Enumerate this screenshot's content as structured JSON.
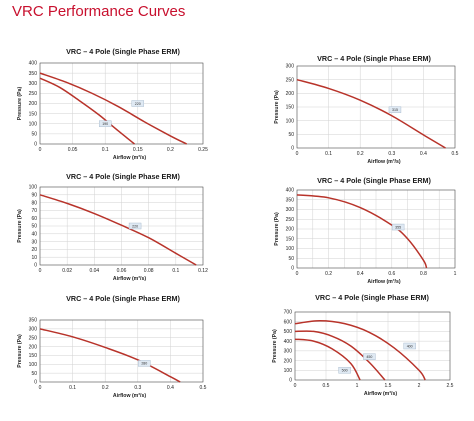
{
  "page": {
    "title": "VRC Performance Curves"
  },
  "chart_data": [
    {
      "type": "line",
      "title": "VRC – 4 Pole (Single Phase ERM)",
      "xlabel": "Airflow (m³/s)",
      "ylabel": "Pressure (Pa)",
      "xlim": [
        0,
        0.25
      ],
      "ylim": [
        0,
        400
      ],
      "xticks": [
        0,
        0.05,
        0.1,
        0.15,
        0.2,
        0.25
      ],
      "xtick_labels": [
        "0",
        "0.05",
        "0.1",
        "0.15",
        "0.2",
        "0.25"
      ],
      "yticks": [
        0,
        50,
        100,
        150,
        200,
        250,
        300,
        350,
        400
      ],
      "ytick_labels": [
        "0",
        "50",
        "100",
        "150",
        "200",
        "250",
        "300",
        "350",
        "400"
      ],
      "grid": true,
      "series": [
        {
          "name": "220",
          "x": [
            0,
            0.04,
            0.08,
            0.12,
            0.16,
            0.2,
            0.225
          ],
          "y": [
            350,
            305,
            250,
            185,
            110,
            40,
            0
          ],
          "label_at": [
            0.15,
            200
          ]
        },
        {
          "name": "190",
          "x": [
            0,
            0.03,
            0.06,
            0.09,
            0.12,
            0.145
          ],
          "y": [
            325,
            280,
            215,
            145,
            65,
            0
          ],
          "label_at": [
            0.1,
            100
          ]
        }
      ]
    },
    {
      "type": "line",
      "title": "VRC – 4 Pole (Single Phase ERM)",
      "xlabel": "Airflow (m³/s)",
      "ylabel": "Pressure (Pa)",
      "xlim": [
        0,
        0.5
      ],
      "ylim": [
        0,
        300
      ],
      "xticks": [
        0,
        0.1,
        0.2,
        0.3,
        0.4,
        0.5
      ],
      "xtick_labels": [
        "0",
        "0.1",
        "0.2",
        "0.3",
        "0.4",
        "0.5"
      ],
      "yticks": [
        0,
        50,
        100,
        150,
        200,
        250,
        300
      ],
      "ytick_labels": [
        "0",
        "50",
        "100",
        "150",
        "200",
        "250",
        "300"
      ],
      "grid": true,
      "series": [
        {
          "name": "315",
          "x": [
            0,
            0.1,
            0.2,
            0.3,
            0.4,
            0.47
          ],
          "y": [
            250,
            218,
            175,
            118,
            48,
            0
          ],
          "label_at": [
            0.31,
            140
          ]
        }
      ]
    },
    {
      "type": "line",
      "title": "VRC – 4 Pole (Single Phase ERM)",
      "xlabel": "Airflow (m³/s)",
      "ylabel": "Pressure (Pa)",
      "xlim": [
        0,
        0.12
      ],
      "ylim": [
        0,
        100
      ],
      "xticks": [
        0,
        0.02,
        0.04,
        0.06,
        0.08,
        0.1,
        0.12
      ],
      "xtick_labels": [
        "0",
        "0.02",
        "0.04",
        "0.06",
        "0.08",
        "0.1",
        "0.12"
      ],
      "yticks": [
        0,
        10,
        20,
        30,
        40,
        50,
        60,
        70,
        80,
        90,
        100
      ],
      "ytick_labels": [
        "0",
        "10",
        "20",
        "30",
        "40",
        "50",
        "60",
        "70",
        "80",
        "90",
        "100"
      ],
      "grid": true,
      "series": [
        {
          "name": "220",
          "x": [
            0,
            0.02,
            0.04,
            0.06,
            0.08,
            0.1,
            0.115
          ],
          "y": [
            90,
            79,
            66,
            51,
            35,
            15,
            0
          ],
          "label_at": [
            0.07,
            50
          ]
        }
      ]
    },
    {
      "type": "line",
      "title": "VRC – 4 Pole (Single Phase ERM)",
      "xlabel": "Airflow (m³/s)",
      "ylabel": "Pressure (Pa)",
      "xlim": [
        0,
        1.0
      ],
      "ylim": [
        0,
        400
      ],
      "xticks": [
        0,
        0.1,
        0.2,
        0.3,
        0.4,
        0.5,
        0.6,
        0.7,
        0.8,
        0.9,
        1.0
      ],
      "xtick_labels": [
        "0",
        "",
        "0.2",
        "",
        "0.4",
        "",
        "0.6",
        "",
        "0.8",
        "",
        "1"
      ],
      "yticks": [
        0,
        50,
        100,
        150,
        200,
        250,
        300,
        350,
        400
      ],
      "ytick_labels": [
        "0",
        "50",
        "100",
        "150",
        "200",
        "250",
        "300",
        "350",
        "400"
      ],
      "grid": true,
      "series": [
        {
          "name": "355",
          "x": [
            0,
            0.2,
            0.4,
            0.6,
            0.7,
            0.8,
            0.82
          ],
          "y": [
            375,
            360,
            310,
            220,
            150,
            40,
            0
          ],
          "label_at": [
            0.64,
            210
          ]
        }
      ]
    },
    {
      "type": "line",
      "title": "VRC – 4 Pole (Single Phase ERM)",
      "xlabel": "Airflow (m³/s)",
      "ylabel": "Pressure (Pa)",
      "xlim": [
        0,
        0.5
      ],
      "ylim": [
        0,
        350
      ],
      "xticks": [
        0,
        0.1,
        0.2,
        0.3,
        0.4,
        0.5
      ],
      "xtick_labels": [
        "0",
        "0.1",
        "0.2",
        "0.3",
        "0.4",
        "0.5"
      ],
      "yticks": [
        0,
        50,
        100,
        150,
        200,
        250,
        300,
        350
      ],
      "ytick_labels": [
        "0",
        "50",
        "100",
        "150",
        "200",
        "250",
        "300",
        "350"
      ],
      "grid": true,
      "series": [
        {
          "name": "280",
          "x": [
            0,
            0.1,
            0.2,
            0.3,
            0.4,
            0.43
          ],
          "y": [
            300,
            255,
            195,
            125,
            30,
            0
          ],
          "label_at": [
            0.32,
            105
          ]
        }
      ]
    },
    {
      "type": "line",
      "title": "VRC – 4 Pole (Single Phase ERM)",
      "xlabel": "Airflow (m³/s)",
      "ylabel": "Pressure (Pa)",
      "xlim": [
        0,
        2.5
      ],
      "ylim": [
        0,
        700
      ],
      "xticks": [
        0,
        0.5,
        1,
        1.5,
        2,
        2.5
      ],
      "xtick_labels": [
        "0",
        "0.5",
        "1",
        "1.5",
        "2",
        "2.5"
      ],
      "yticks": [
        0,
        100,
        200,
        300,
        400,
        500,
        600,
        700
      ],
      "ytick_labels": [
        "0",
        "100",
        "200",
        "300",
        "400",
        "500",
        "600",
        "700"
      ],
      "grid": true,
      "series": [
        {
          "name": "400",
          "x": [
            0,
            0.4,
            0.8,
            1.2,
            1.6,
            2.0,
            2.1
          ],
          "y": [
            580,
            610,
            580,
            490,
            330,
            100,
            0
          ],
          "label_at": [
            1.85,
            350
          ]
        },
        {
          "name": "450",
          "x": [
            0,
            0.3,
            0.6,
            0.9,
            1.2,
            1.45
          ],
          "y": [
            500,
            500,
            450,
            350,
            180,
            0
          ],
          "label_at": [
            1.2,
            240
          ]
        },
        {
          "name": "500",
          "x": [
            0,
            0.3,
            0.6,
            0.9,
            1.05
          ],
          "y": [
            420,
            400,
            320,
            170,
            0
          ],
          "label_at": [
            0.8,
            100
          ]
        }
      ]
    }
  ]
}
